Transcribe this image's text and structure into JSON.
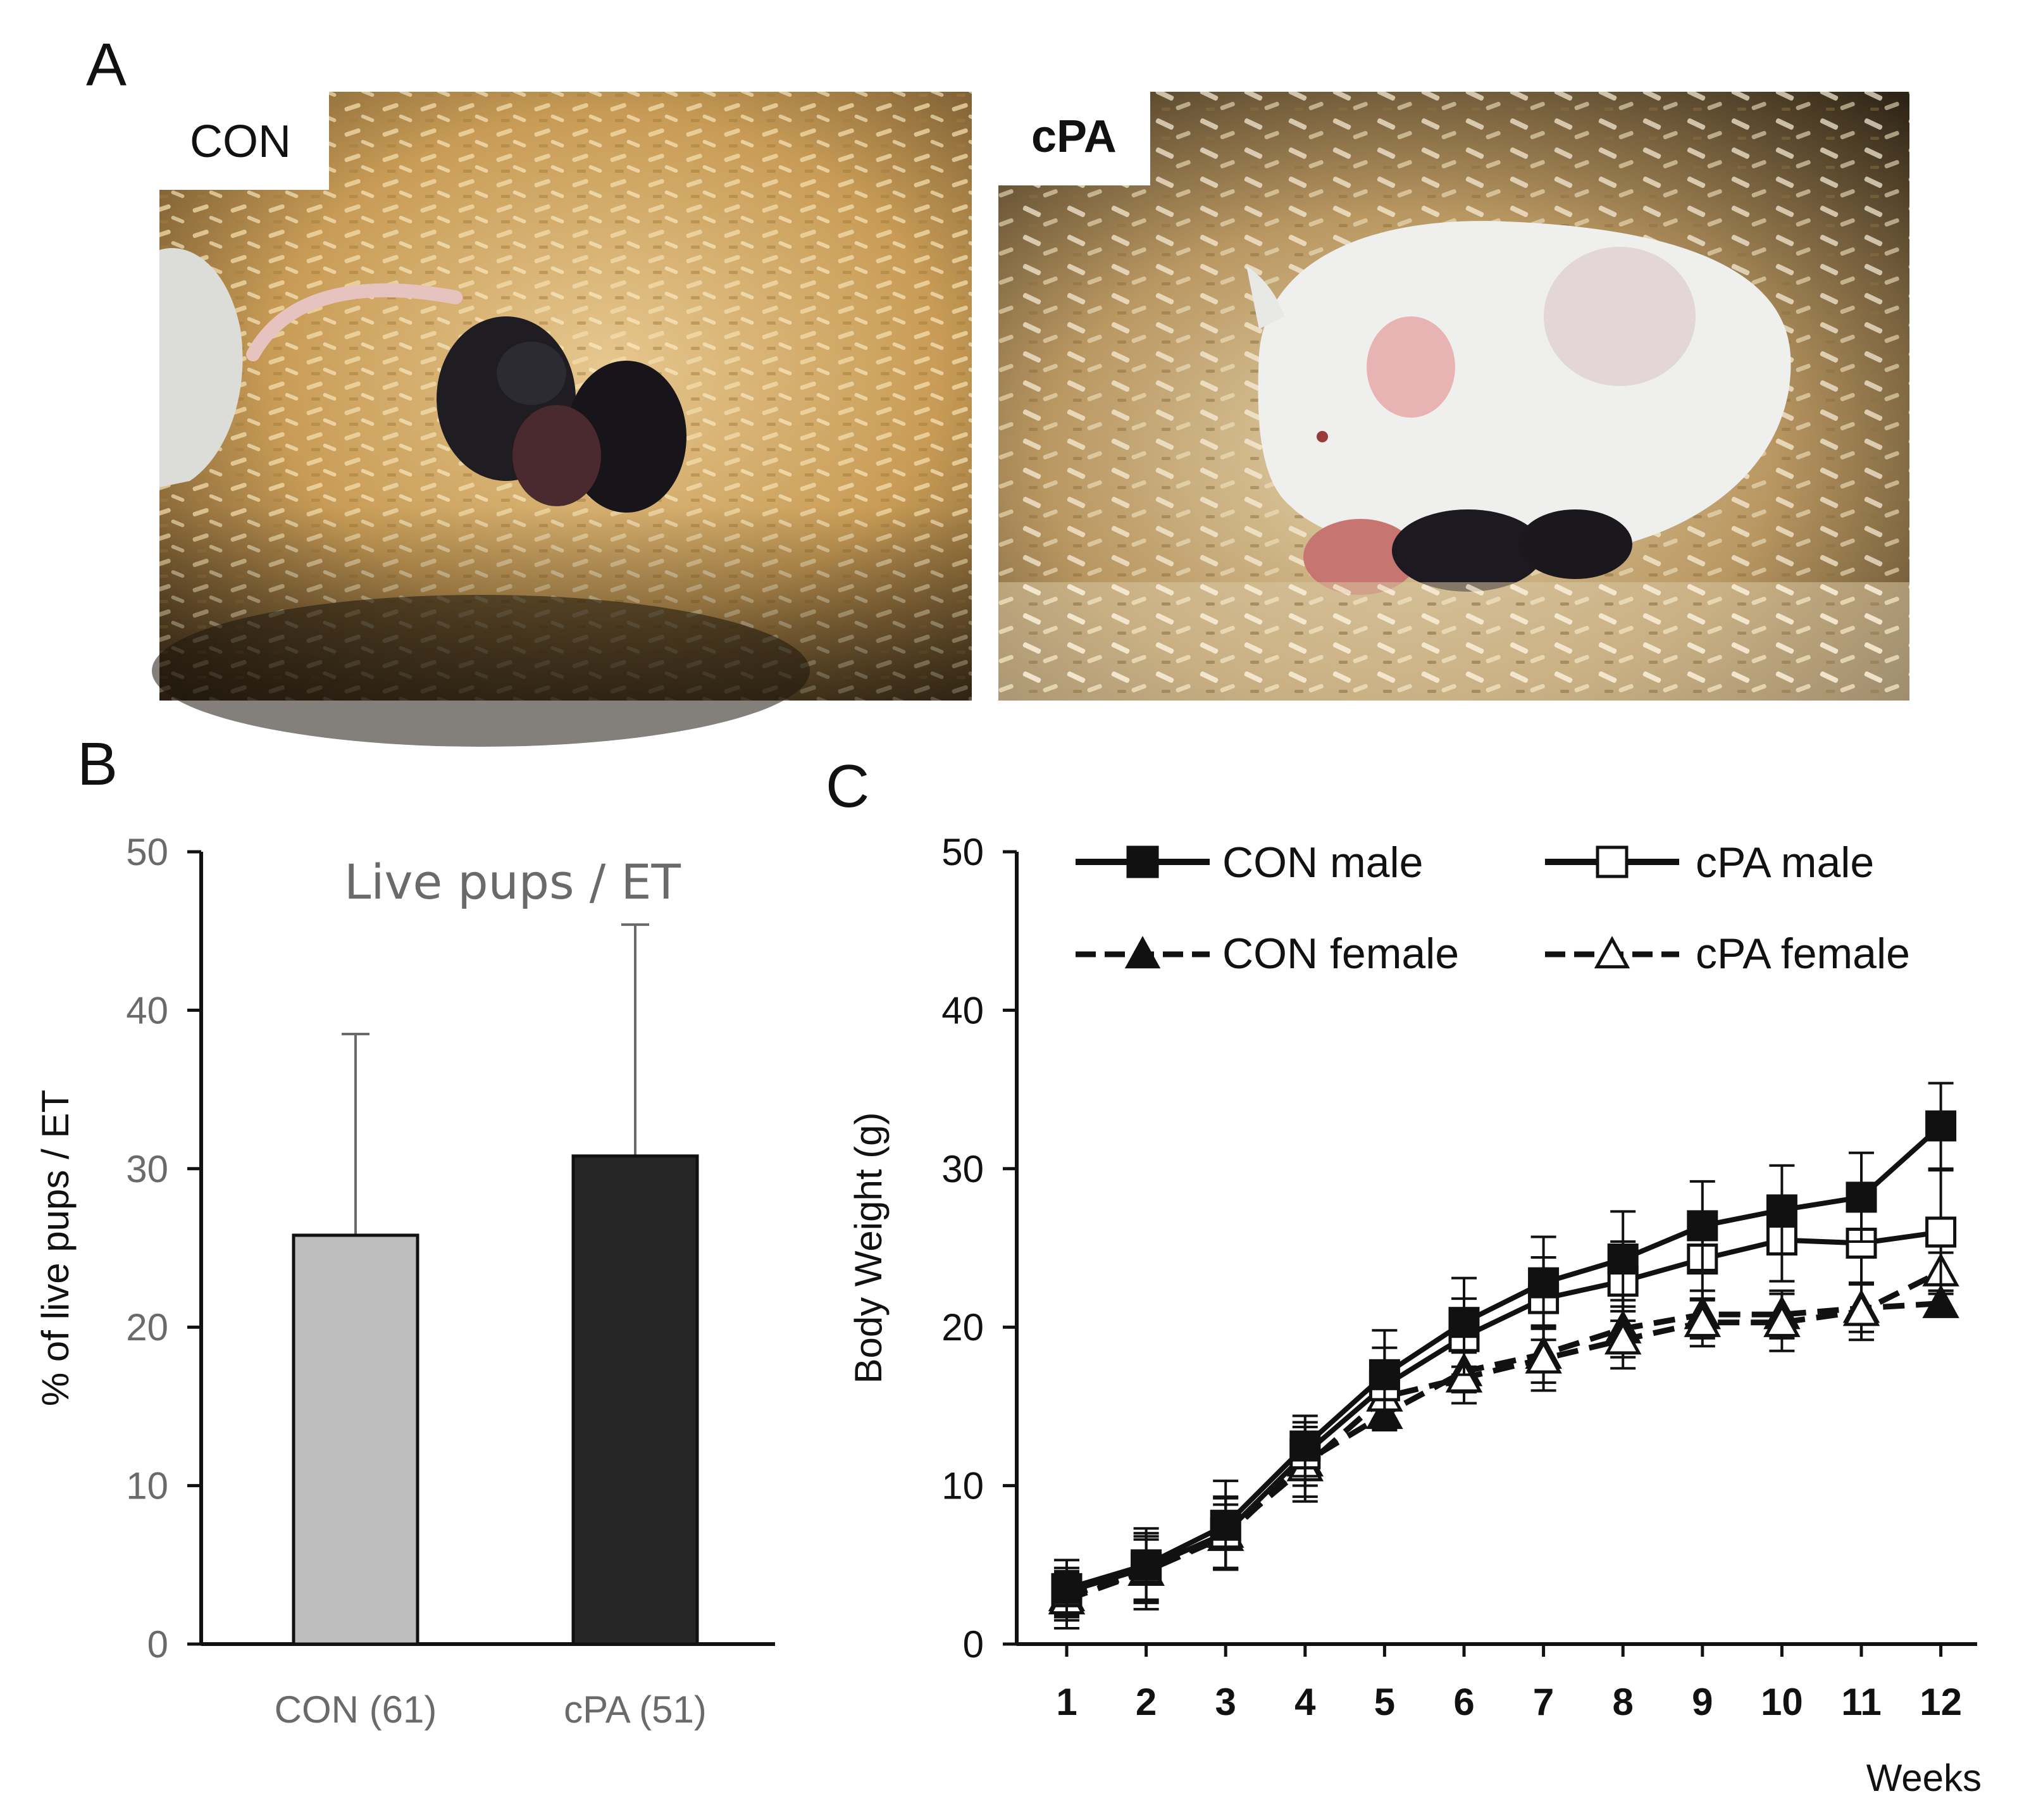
{
  "panel_a": {
    "letter": "A",
    "photos": [
      {
        "label": "CON",
        "label_bold": false
      },
      {
        "label": "cPA",
        "label_bold": true
      }
    ]
  },
  "panel_b": {
    "letter": "B"
  },
  "panel_c": {
    "letter": "C"
  },
  "colors": {
    "con_bar": "#bdbdbd",
    "cpa_bar": "#262626",
    "axis": "#111111",
    "gray_text": "#6a6a6a",
    "error_bar": "#6a6a6a"
  },
  "chart_data": [
    {
      "type": "bar",
      "title": "Live pups / ET",
      "xlabel": "",
      "ylabel": "% of live pups / ET",
      "ylim": [
        0,
        50
      ],
      "yticks": [
        0,
        10,
        20,
        30,
        40,
        50
      ],
      "categories": [
        "CON (61)",
        "cPA (51)"
      ],
      "values": [
        25.8,
        30.8
      ],
      "error_upper": [
        38.5,
        45.4
      ],
      "grid": false
    },
    {
      "type": "line",
      "title": "",
      "xlabel": "Weeks",
      "ylabel": "Body Weight (g)",
      "ylim": [
        0,
        50
      ],
      "yticks": [
        0,
        10,
        20,
        30,
        40,
        50
      ],
      "x": [
        1,
        2,
        3,
        4,
        5,
        6,
        7,
        8,
        9,
        10,
        11,
        12
      ],
      "grid": false,
      "legend_position": "top",
      "series": [
        {
          "name": "CON male",
          "marker": "square",
          "filled": true,
          "dashed": false,
          "values": [
            3.5,
            5.0,
            7.5,
            12.5,
            17.0,
            20.3,
            22.8,
            24.3,
            26.4,
            27.4,
            28.2,
            32.7
          ],
          "errors": [
            1.8,
            2.3,
            2.8,
            1.9,
            2.8,
            2.8,
            2.9,
            3.0,
            2.8,
            2.8,
            2.8,
            2.7
          ]
        },
        {
          "name": "cPA male",
          "marker": "square",
          "filled": false,
          "dashed": false,
          "values": [
            3.3,
            4.8,
            7.0,
            12.0,
            16.3,
            19.4,
            21.8,
            22.9,
            24.3,
            25.5,
            25.3,
            26.0
          ],
          "errors": [
            1.5,
            2.0,
            2.3,
            2.0,
            2.4,
            2.4,
            2.6,
            2.5,
            2.6,
            2.6,
            2.5,
            3.9
          ]
        },
        {
          "name": "CON female",
          "marker": "triangle",
          "filled": true,
          "dashed": true,
          "values": [
            3.0,
            4.6,
            6.8,
            11.5,
            14.5,
            17.2,
            18.3,
            19.9,
            20.8,
            20.8,
            21.2,
            21.5
          ],
          "errors": [
            1.5,
            2.0,
            2.0,
            2.2,
            1.0,
            1.3,
            1.8,
            1.8,
            1.5,
            1.5,
            1.5,
            0.8
          ]
        },
        {
          "name": "cPA female",
          "marker": "triangle",
          "filled": false,
          "dashed": true,
          "values": [
            2.8,
            4.6,
            7.0,
            11.2,
            15.6,
            16.8,
            18.0,
            19.2,
            20.3,
            20.3,
            21.0,
            23.5
          ],
          "errors": [
            1.8,
            2.4,
            2.2,
            2.2,
            1.5,
            1.6,
            2.0,
            1.8,
            1.5,
            1.8,
            1.8,
            1.2
          ]
        }
      ]
    }
  ]
}
